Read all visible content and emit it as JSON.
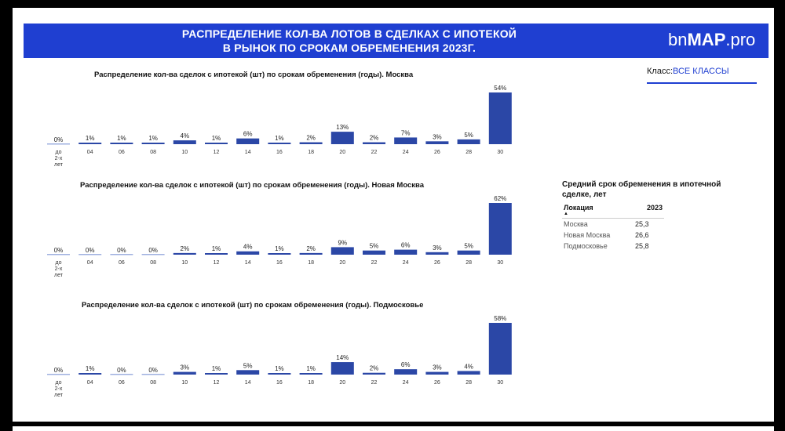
{
  "header": {
    "title_line1": "РАСПРЕДЕЛЕНИЕ КОЛ-ВА ЛОТОВ В СДЕЛКАХ С ИПОТЕКОЙ",
    "title_line2": "В РЫНОК ПО СРОКАМ ОБРЕМЕНЕНИЯ 2023Г.",
    "logo_prefix": "bn",
    "logo_bold": "MAP",
    "logo_suffix": ".pro"
  },
  "filter": {
    "label": "Класс:",
    "value": "ВСЕ КЛАССЫ"
  },
  "side_table": {
    "title": "Средний срок обременения в ипотечной сделке, лет",
    "col_location": "Локация",
    "col_year": "2023",
    "rows": [
      {
        "location": "Москва",
        "value": "25,3"
      },
      {
        "location": "Новая Москва",
        "value": "26,6"
      },
      {
        "location": "Подмосковье",
        "value": "25,8"
      }
    ]
  },
  "colors": {
    "banner": "#1f3fd1",
    "bar": "#2b47a6",
    "zero_line": "#9fb0e0"
  },
  "chart_data": [
    {
      "type": "bar",
      "title": "Распределение кол-ва сделок с ипотекой (шт) по срокам обременения (годы). Москва",
      "categories": [
        "до 2-х лет",
        "04",
        "06",
        "08",
        "10",
        "12",
        "14",
        "16",
        "18",
        "20",
        "22",
        "24",
        "26",
        "28",
        "30"
      ],
      "values": [
        0,
        1,
        1,
        1,
        4,
        1,
        6,
        1,
        2,
        13,
        2,
        7,
        3,
        5,
        54
      ],
      "labels": [
        "0%",
        "1%",
        "1%",
        "1%",
        "4%",
        "1%",
        "6%",
        "1%",
        "2%",
        "13%",
        "2%",
        "7%",
        "3%",
        "5%",
        "54%"
      ],
      "unit": "%"
    },
    {
      "type": "bar",
      "title": "Распределение кол-ва сделок с ипотекой (шт) по срокам обременения (годы). Новая Москва",
      "categories": [
        "до 2-х лет",
        "04",
        "06",
        "08",
        "10",
        "12",
        "14",
        "16",
        "18",
        "20",
        "22",
        "24",
        "26",
        "28",
        "30"
      ],
      "values": [
        0,
        0,
        0,
        0,
        2,
        1,
        4,
        1,
        2,
        9,
        5,
        6,
        3,
        5,
        62
      ],
      "labels": [
        "0%",
        "0%",
        "0%",
        "0%",
        "2%",
        "1%",
        "4%",
        "1%",
        "2%",
        "9%",
        "5%",
        "6%",
        "3%",
        "5%",
        "62%"
      ],
      "unit": "%"
    },
    {
      "type": "bar",
      "title": "Распределение кол-ва сделок с ипотекой (шт) по срокам обременения (годы). Подмосковье",
      "categories": [
        "до 2-х лет",
        "04",
        "06",
        "08",
        "10",
        "12",
        "14",
        "16",
        "18",
        "20",
        "22",
        "24",
        "26",
        "28",
        "30"
      ],
      "values": [
        0,
        1,
        0,
        0,
        3,
        1,
        5,
        1,
        1,
        14,
        2,
        6,
        3,
        4,
        58
      ],
      "labels": [
        "0%",
        "1%",
        "0%",
        "0%",
        "3%",
        "1%",
        "5%",
        "1%",
        "1%",
        "14%",
        "2%",
        "6%",
        "3%",
        "4%",
        "58%"
      ],
      "unit": "%"
    }
  ]
}
